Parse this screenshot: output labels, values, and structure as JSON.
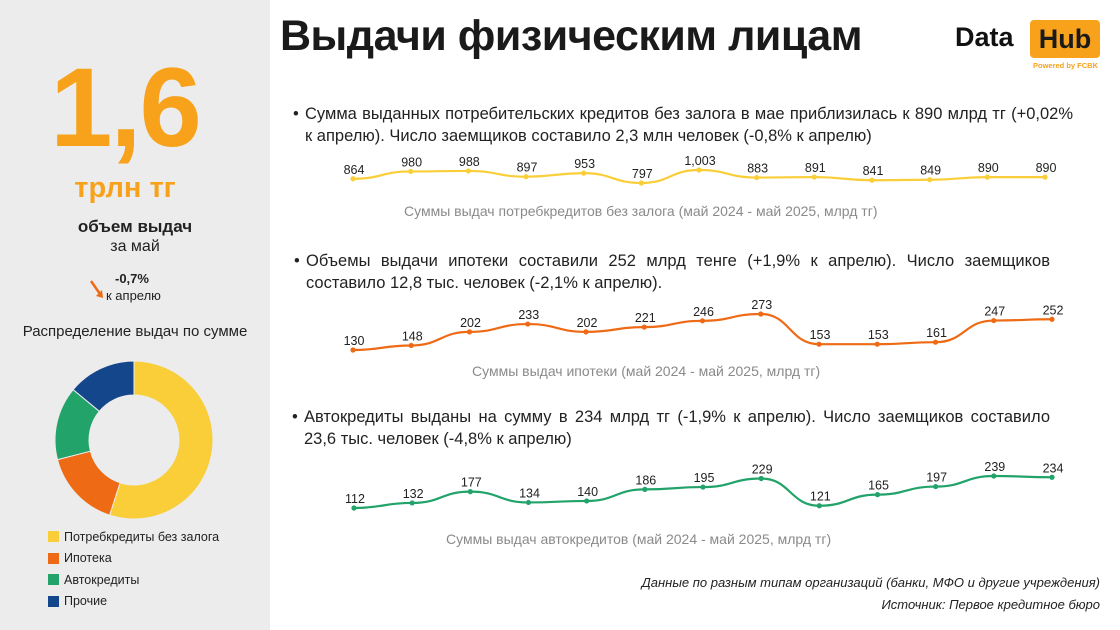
{
  "title": "Выдачи физическим лицам",
  "logo": {
    "data": "Data",
    "hub": "Hub",
    "powered": "Powered by FCBK"
  },
  "sidebar": {
    "big_number": "1,6",
    "unit": "трлн тг",
    "label": "объем выдач",
    "sublabel": "за май",
    "change_value": "-0,7%",
    "change_label": "к апрелю",
    "distribution_title": "Распределение выдач по сумме"
  },
  "colors": {
    "accent": "#f7a21a",
    "consumer": "#f9ce38",
    "mortgage": "#ee6a14",
    "auto": "#21a36a",
    "other": "#13468b"
  },
  "sections": [
    {
      "text": "Сумма выданных потребительских кредитов без залога в мае приблизилась к 890 млрд тг (+0,02% к апрелю). Число заемщиков составило 2,3 млн человек (-0,8% к апрелю)"
    },
    {
      "text": "Объемы выдачи ипотеки составили 252 млрд тенге (+1,9% к апрелю). Число заемщиков составило 12,8 тыс. человек (-2,1% к апрелю)."
    },
    {
      "text": "Автокредиты выданы на сумму в 234 млрд тг (-1,9% к апрелю). Число заемщиков составило 23,6 тыс. человек (-4,8% к апрелю)"
    }
  ],
  "chart_data": [
    {
      "type": "line",
      "title": "Суммы выдач потребкредитов без залога (май 2024 - май 2025, млрд тг)",
      "values": [
        864,
        980,
        988,
        897,
        953,
        797,
        1003,
        883,
        891,
        841,
        849,
        890,
        890
      ],
      "labels": [
        "864",
        "980",
        "988",
        "897",
        "953",
        "797",
        "1,003",
        "883",
        "891",
        "841",
        "849",
        "890",
        "890"
      ],
      "color": "#f9ce38",
      "grid": false
    },
    {
      "type": "line",
      "title": "Суммы выдач ипотеки  (май 2024 - май 2025, млрд тг)",
      "values": [
        130,
        148,
        202,
        233,
        202,
        221,
        246,
        273,
        153,
        153,
        161,
        247,
        252
      ],
      "labels": [
        "130",
        "148",
        "202",
        "233",
        "202",
        "221",
        "246",
        "273",
        "153",
        "153",
        "161",
        "247",
        "252"
      ],
      "color": "#ee6a14",
      "grid": false
    },
    {
      "type": "line",
      "title": "Суммы выдач автокредитов (май 2024 - май 2025, млрд тг)",
      "values": [
        112,
        132,
        177,
        134,
        140,
        186,
        195,
        229,
        121,
        165,
        197,
        239,
        234
      ],
      "labels": [
        "112",
        "132",
        "177",
        "134",
        "140",
        "186",
        "195",
        "229",
        "121",
        "165",
        "197",
        "239",
        "234"
      ],
      "color": "#21a36a",
      "grid": false
    },
    {
      "type": "pie",
      "title": "Распределение выдач по сумме",
      "donut": true,
      "slices": [
        {
          "name": "Потребкредиты без залога",
          "value": 55,
          "color": "#f9ce38"
        },
        {
          "name": "Ипотека",
          "value": 16,
          "color": "#ee6a14"
        },
        {
          "name": "Автокредиты",
          "value": 15,
          "color": "#21a36a"
        },
        {
          "name": "Прочие",
          "value": 14,
          "color": "#13468b"
        }
      ]
    }
  ],
  "footer": {
    "note": "Данные по разным типам организаций (банки, МФО и другие учреждения)",
    "source": "Источник: Первое кредитное бюро"
  }
}
